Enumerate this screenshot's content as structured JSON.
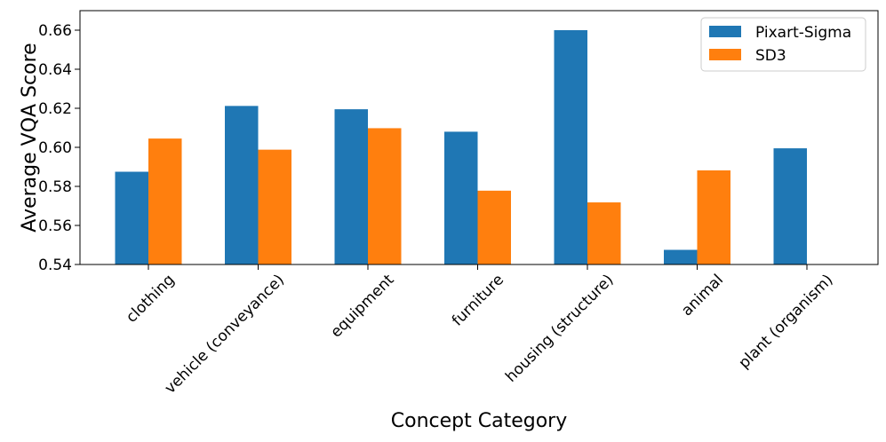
{
  "chart_data": {
    "type": "bar",
    "title": "",
    "xlabel": "Concept Category",
    "ylabel": "Average VQA Score",
    "categories": [
      "clothing",
      "vehicle (conveyance)",
      "equipment",
      "furniture",
      "housing (structure)",
      "animal",
      "plant (organism)"
    ],
    "series": [
      {
        "name": "Pixart-Sigma",
        "color": "#1f77b4",
        "values": [
          0.5875,
          0.6212,
          0.6195,
          0.608,
          0.66,
          0.5475,
          0.5995
        ]
      },
      {
        "name": "SD3",
        "color": "#ff7f0e",
        "values": [
          0.6045,
          0.5988,
          0.6098,
          0.5778,
          0.5718,
          0.5882,
          null
        ]
      }
    ],
    "ylim": [
      0.54,
      0.67
    ],
    "yticks": [
      "0.54",
      "0.56",
      "0.58",
      "0.60",
      "0.62",
      "0.64",
      "0.66"
    ],
    "grid": false,
    "legend": "top-right"
  }
}
